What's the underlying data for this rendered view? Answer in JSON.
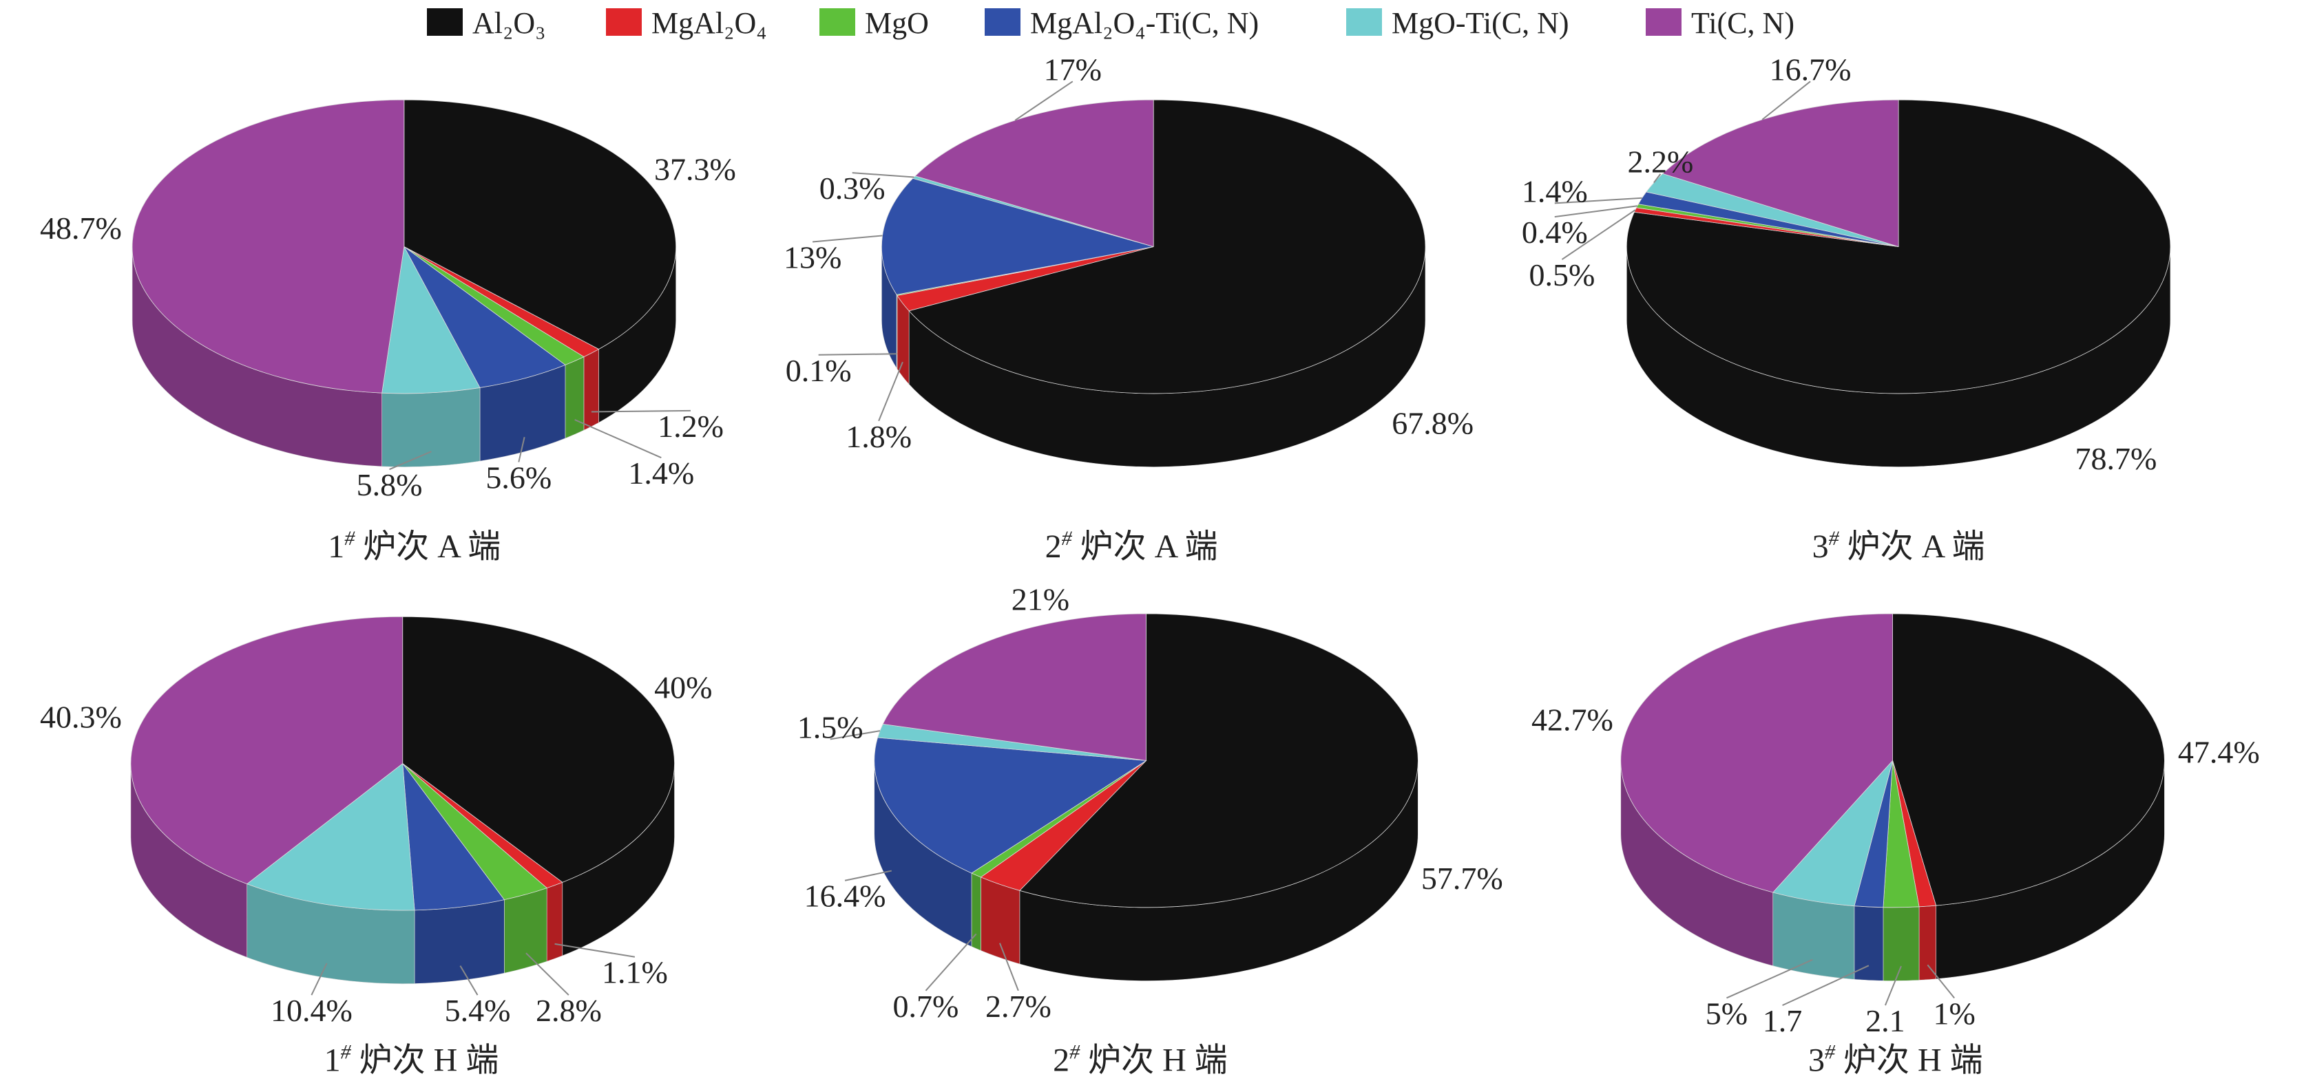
{
  "legend": [
    {
      "label": "Al₂O₃",
      "color": "#111111"
    },
    {
      "label": "MgAl₂O₄",
      "color": "#e0262a"
    },
    {
      "label": "MgO",
      "color": "#5ec03a"
    },
    {
      "label": "MgAl₂O₄-Ti(C, N)",
      "color": "#3050a8"
    },
    {
      "label": "MgO-Ti(C, N)",
      "color": "#72cdd0"
    },
    {
      "label": "Ti(C, N)",
      "color": "#9a449c"
    }
  ],
  "chart_data": [
    {
      "type": "pie",
      "style": "3d",
      "title": {
        "num": "1",
        "sup": "#",
        "rest": " 炉次 A 端"
      },
      "categories": [
        "Al₂O₃",
        "MgAl₂O₄",
        "MgO",
        "MgAl₂O₄-Ti(C, N)",
        "MgO-Ti(C, N)",
        "Ti(C, N)"
      ],
      "values": [
        37.3,
        1.2,
        1.4,
        5.6,
        5.8,
        48.7
      ],
      "labels": [
        "37.3%",
        "1.2%",
        "1.4%",
        "5.6%",
        "5.8%",
        "48.7%"
      ]
    },
    {
      "type": "pie",
      "style": "3d",
      "title": {
        "num": "2",
        "sup": "#",
        "rest": " 炉次 A 端"
      },
      "categories": [
        "Al₂O₃",
        "MgAl₂O₄",
        "MgO",
        "MgAl₂O₄-Ti(C, N)",
        "MgO-Ti(C, N)",
        "Ti(C, N)"
      ],
      "values": [
        67.8,
        1.8,
        0.1,
        13,
        0.3,
        17
      ],
      "labels": [
        "67.8%",
        "1.8%",
        "0.1%",
        "13%",
        "0.3%",
        "17%"
      ]
    },
    {
      "type": "pie",
      "style": "3d",
      "title": {
        "num": "3",
        "sup": "#",
        "rest": " 炉次 A 端"
      },
      "categories": [
        "Al₂O₃",
        "MgAl₂O₄",
        "MgO",
        "MgAl₂O₄-Ti(C, N)",
        "MgO-Ti(C, N)",
        "Ti(C, N)"
      ],
      "values": [
        78.7,
        0.5,
        0.4,
        1.4,
        2.2,
        16.7
      ],
      "labels": [
        "78.7%",
        "0.5%",
        "0.4%",
        "1.4%",
        "2.2%",
        "16.7%"
      ]
    },
    {
      "type": "pie",
      "style": "3d",
      "title": {
        "num": "1",
        "sup": "#",
        "rest": " 炉次 H 端"
      },
      "categories": [
        "Al₂O₃",
        "MgAl₂O₄",
        "MgO",
        "MgAl₂O₄-Ti(C, N)",
        "MgO-Ti(C, N)",
        "Ti(C, N)"
      ],
      "values": [
        40,
        1.1,
        2.8,
        5.4,
        10.4,
        40.3
      ],
      "labels": [
        "40%",
        "1.1%",
        "2.8%",
        "5.4%",
        "10.4%",
        "40.3%"
      ]
    },
    {
      "type": "pie",
      "style": "3d",
      "title": {
        "num": "2",
        "sup": "#",
        "rest": " 炉次 H 端"
      },
      "categories": [
        "Al₂O₃",
        "MgAl₂O₄",
        "MgO",
        "MgAl₂O₄-Ti(C, N)",
        "MgO-Ti(C, N)",
        "Ti(C, N)"
      ],
      "values": [
        57.7,
        2.7,
        0.7,
        16.4,
        1.5,
        21
      ],
      "labels": [
        "57.7%",
        "2.7%",
        "0.7%",
        "16.4%",
        "1.5%",
        "21%"
      ]
    },
    {
      "type": "pie",
      "style": "3d",
      "title": {
        "num": "3",
        "sup": "#",
        "rest": " 炉次 H 端"
      },
      "categories": [
        "Al₂O₃",
        "MgAl₂O₄",
        "MgO",
        "MgAl₂O₄-Ti(C, N)",
        "MgO-Ti(C, N)",
        "Ti(C, N)"
      ],
      "values": [
        47.4,
        1,
        2.1,
        1.7,
        5,
        42.7
      ],
      "labels": [
        "47.4%",
        "1%",
        "2.1",
        "1.7",
        "5%",
        "42.7%"
      ]
    }
  ]
}
